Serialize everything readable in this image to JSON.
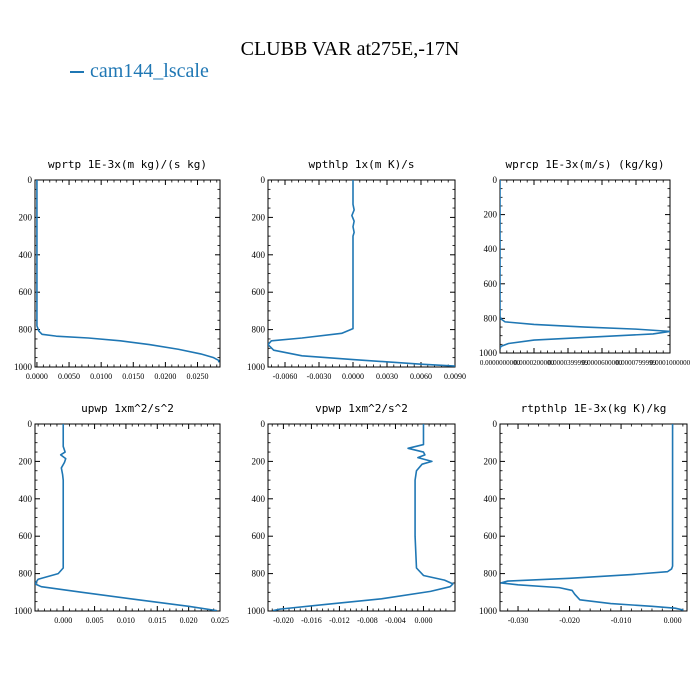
{
  "title": "CLUBB VAR at275E,-17N",
  "legend": {
    "label": "cam144_lscale"
  },
  "colors": {
    "line": "#1f77b4",
    "axis": "#000000"
  },
  "chart_data": [
    {
      "type": "line",
      "title": "wprtp  1E-3x(m kg)/(s kg)",
      "xlim": [
        -0.0003,
        0.0285
      ],
      "ylim": [
        1000,
        0
      ],
      "xticks": [
        0.0,
        0.005,
        0.01,
        0.015,
        0.02,
        0.025
      ],
      "xtick_labels": [
        "0.0000",
        "0.0050",
        "0.0100",
        "0.0150",
        "0.0200",
        "0.0250"
      ],
      "yticks": [
        0,
        200,
        400,
        600,
        800,
        1000
      ],
      "ytick_labels": [
        "0",
        "200",
        "400",
        "600",
        "800",
        "1000"
      ],
      "series": [
        {
          "x": [
            0.0,
            0.0,
            0.0,
            0.0,
            0.0,
            0.0003,
            0.0008,
            0.003,
            0.008,
            0.013,
            0.0175,
            0.022,
            0.0255,
            0.0275,
            0.0283,
            0.0283
          ],
          "y": [
            0,
            200,
            400,
            600,
            780,
            808,
            825,
            835,
            845,
            860,
            880,
            905,
            930,
            950,
            965,
            975
          ]
        }
      ]
    },
    {
      "type": "line",
      "title": "wpthlp  1x(m K)/s",
      "xlim": [
        -0.0075,
        0.009
      ],
      "ylim": [
        1000,
        0
      ],
      "xticks": [
        -0.006,
        -0.003,
        0.0,
        0.003,
        0.006,
        0.009
      ],
      "xtick_labels": [
        "-0.0060",
        "-0.0030",
        "0.0000",
        "0.0030",
        "0.0060",
        "0.0090"
      ],
      "yticks": [
        0,
        200,
        400,
        600,
        800,
        1000
      ],
      "ytick_labels": [
        "0",
        "200",
        "400",
        "600",
        "800",
        "1000"
      ],
      "series": [
        {
          "x": [
            0.0,
            0.0,
            0.0001,
            -0.0001,
            0.0001,
            0.0,
            0.0001,
            0.0,
            0.0,
            0.0,
            0.0,
            -0.001,
            -0.0045,
            -0.0072,
            -0.0075,
            -0.007,
            -0.0045,
            0.0,
            0.006,
            0.009
          ],
          "y": [
            0,
            130,
            160,
            190,
            220,
            250,
            280,
            300,
            400,
            600,
            795,
            820,
            845,
            860,
            880,
            910,
            940,
            960,
            985,
            995
          ]
        }
      ]
    },
    {
      "type": "line",
      "title": "wprcp  1E-3x(m/s) (kg/kg)",
      "xlim": [
        0.0,
        0.0001
      ],
      "ylim": [
        1000,
        0
      ],
      "xticks": [
        0.0,
        2e-05,
        4e-05,
        6e-05,
        8e-05,
        0.0001
      ],
      "xtick_labels": [
        "0.0000000000",
        "0.0000200000",
        "0.0000399999",
        "0.0000600000",
        "0.0000799999",
        "0.0001000000"
      ],
      "yticks": [
        0,
        200,
        400,
        600,
        800,
        1000
      ],
      "ytick_labels": [
        "0",
        "200",
        "400",
        "600",
        "800",
        "1000"
      ],
      "series": [
        {
          "x": [
            0.0,
            0.0,
            0.0,
            8e-07,
            3e-06,
            2e-05,
            5e-05,
            8e-05,
            0.0001,
            9e-05,
            6e-05,
            2e-05,
            5e-06,
            5e-07,
            0.0
          ],
          "y": [
            0,
            400,
            790,
            805,
            820,
            835,
            850,
            862,
            875,
            890,
            905,
            925,
            945,
            962,
            975
          ]
        }
      ]
    },
    {
      "type": "line",
      "title": "upwp  1xm^2/s^2",
      "xlim": [
        -0.0045,
        0.025
      ],
      "ylim": [
        1000,
        0
      ],
      "xticks": [
        0.0,
        0.005,
        0.01,
        0.015,
        0.02,
        0.025
      ],
      "xtick_labels": [
        "0.000",
        "0.005",
        "0.010",
        "0.015",
        "0.020",
        "0.025"
      ],
      "yticks": [
        0,
        200,
        400,
        600,
        800,
        1000
      ],
      "ytick_labels": [
        "0",
        "200",
        "400",
        "600",
        "800",
        "1000"
      ],
      "series": [
        {
          "x": [
            0.0,
            0.0,
            0.0003,
            -0.0004,
            0.0004,
            0.0002,
            -0.0003,
            -0.0001,
            0.0,
            0.0,
            0.0,
            -0.0008,
            -0.004,
            -0.0045,
            -0.0035,
            0.003,
            0.012,
            0.02,
            0.0245
          ],
          "y": [
            0,
            120,
            150,
            165,
            185,
            205,
            235,
            270,
            300,
            500,
            770,
            800,
            830,
            855,
            870,
            900,
            940,
            975,
            998
          ]
        }
      ]
    },
    {
      "type": "line",
      "title": "vpwp  1xm^2/s^2",
      "xlim": [
        -0.0222,
        0.0045
      ],
      "ylim": [
        1000,
        0
      ],
      "xticks": [
        -0.02,
        -0.016,
        -0.012,
        -0.008,
        -0.004,
        0.0
      ],
      "xtick_labels": [
        "-0.020",
        "-0.016",
        "-0.012",
        "-0.008",
        "-0.004",
        "0.000"
      ],
      "yticks": [
        0,
        200,
        400,
        600,
        800,
        1000
      ],
      "ytick_labels": [
        "0",
        "200",
        "400",
        "600",
        "800",
        "1000"
      ],
      "series": [
        {
          "x": [
            0.0,
            0.0,
            -0.0022,
            0.0,
            0.0002,
            -0.0008,
            0.0012,
            -0.0002,
            -0.001,
            -0.0012,
            -0.0012,
            -0.001,
            0.0,
            0.003,
            0.0042,
            0.0038,
            0.001,
            -0.006,
            -0.014,
            -0.0205,
            -0.0215
          ],
          "y": [
            0,
            110,
            130,
            150,
            165,
            180,
            200,
            215,
            250,
            300,
            600,
            770,
            810,
            835,
            855,
            870,
            895,
            935,
            965,
            990,
            998
          ]
        }
      ]
    },
    {
      "type": "line",
      "title": "rtpthlp  1E-3x(kg K)/kg",
      "xlim": [
        -0.0335,
        0.0028
      ],
      "ylim": [
        1000,
        0
      ],
      "xticks": [
        -0.03,
        -0.02,
        -0.01,
        0.0
      ],
      "xtick_labels": [
        "-0.030",
        "-0.020",
        "-0.010",
        "0.000"
      ],
      "yticks": [
        0,
        200,
        400,
        600,
        800,
        1000
      ],
      "ytick_labels": [
        "0",
        "200",
        "400",
        "600",
        "800",
        "1000"
      ],
      "series": [
        {
          "x": [
            0.0,
            0.0,
            0.0,
            -0.0002,
            -0.001,
            -0.008,
            -0.02,
            -0.032,
            -0.0333,
            -0.03,
            -0.022,
            -0.0195,
            -0.019,
            -0.018,
            -0.012,
            -0.004,
            0.0005,
            0.0021
          ],
          "y": [
            0,
            400,
            760,
            775,
            790,
            805,
            825,
            840,
            850,
            860,
            875,
            890,
            910,
            940,
            960,
            975,
            985,
            995
          ]
        }
      ]
    }
  ]
}
